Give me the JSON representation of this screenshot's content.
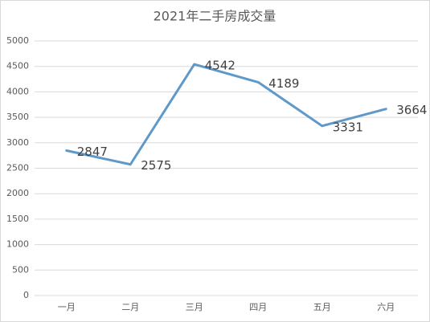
{
  "chart_data": {
    "type": "line",
    "title": "2021年二手房成交量",
    "categories": [
      "一月",
      "二月",
      "三月",
      "四月",
      "五月",
      "六月"
    ],
    "values": [
      2847,
      2575,
      4542,
      4189,
      3331,
      3664
    ],
    "color": "#5f99c9",
    "ylim": [
      0,
      5000
    ],
    "yticks": [
      0,
      500,
      1000,
      1500,
      2000,
      2500,
      3000,
      3500,
      4000,
      4500,
      5000
    ],
    "grid": true,
    "data_labels": true
  }
}
